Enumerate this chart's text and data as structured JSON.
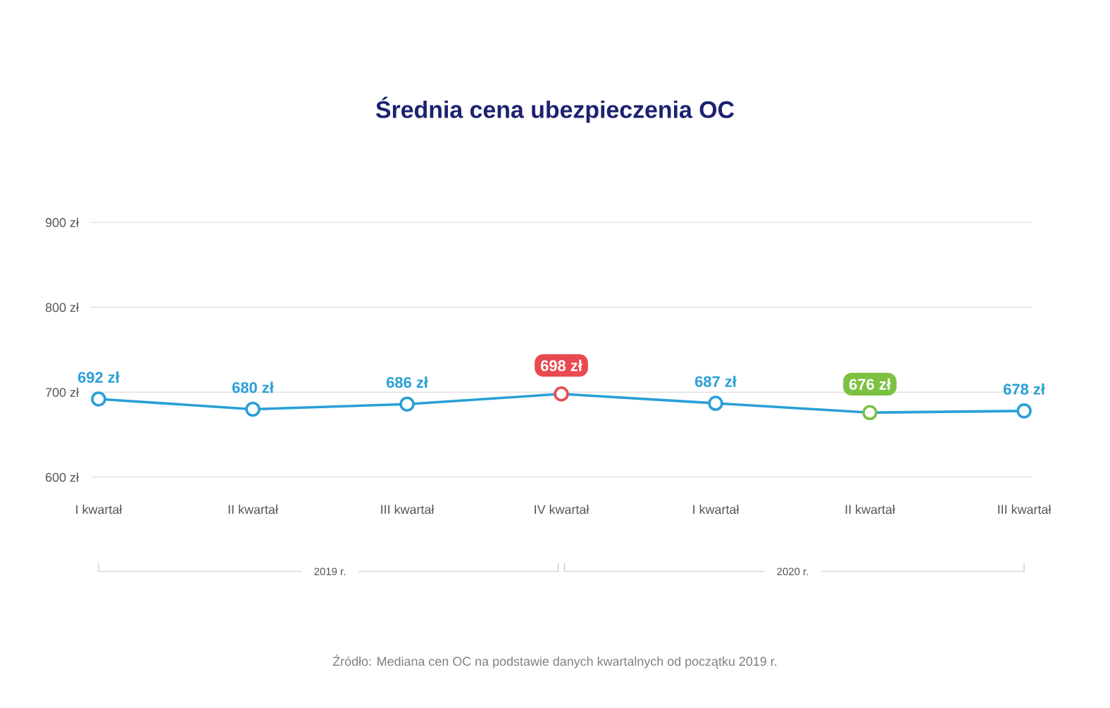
{
  "chart_data": {
    "type": "line",
    "title": "Średnia cena ubezpieczenia OC",
    "categories": [
      "I kwartał",
      "II kwartał",
      "III kwartał",
      "IV kwartał",
      "I kwartał",
      "II kwartał",
      "III kwartał"
    ],
    "series": [
      {
        "color": "#2a9fd6",
        "values": [
          692,
          680,
          686,
          698,
          687,
          676,
          678
        ],
        "colors": [
          "#2a9fd6",
          "#2a9fd6",
          "#2a9fd6",
          "#e84a4f",
          "#2a9fd6",
          "#7cc142",
          "#2a9fd6"
        ],
        "value_labels": [
          "692 zł",
          "680 zł",
          "686 zł",
          "698 zł",
          "687 zł",
          "676 zł",
          "678 zł"
        ]
      }
    ],
    "ylim": [
      600,
      900
    ],
    "yticks": [
      {
        "value": 600,
        "label": "600 zł"
      },
      {
        "value": 700,
        "label": "700 zł"
      },
      {
        "value": 800,
        "label": "800 zł"
      },
      {
        "value": 900,
        "label": "900 zł"
      }
    ],
    "grid": "y",
    "marker": "circle",
    "annotations": [
      "2019 r.",
      "2020 r.",
      "Źródło: Mediana cen OC na podstawie danych kwartalnych od początku 2019 r."
    ]
  }
}
